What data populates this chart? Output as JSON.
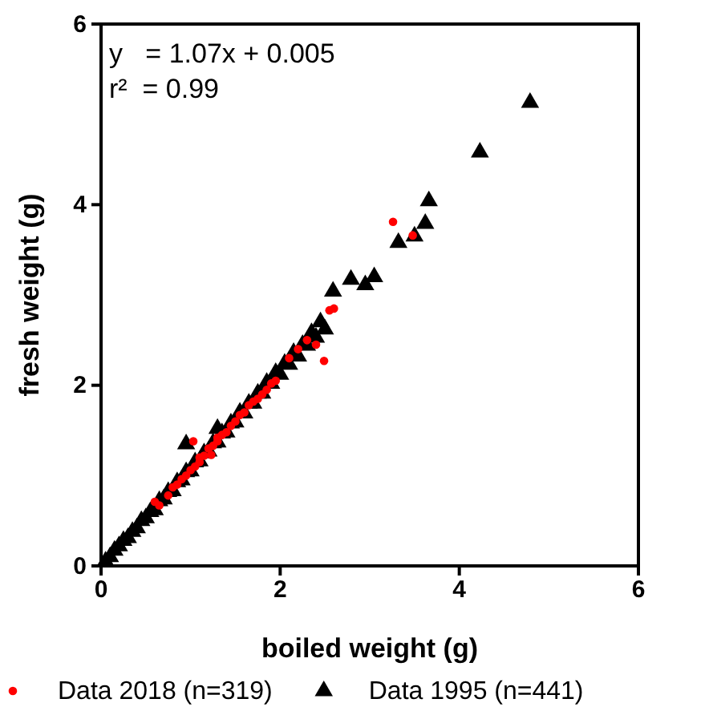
{
  "chart_data": {
    "type": "scatter",
    "xlabel": "boiled weight (g)",
    "ylabel": "fresh weight (g)",
    "xlim": [
      0,
      6
    ],
    "ylim": [
      0,
      6
    ],
    "xticks": [
      0,
      2,
      4,
      6
    ],
    "yticks": [
      0,
      2,
      4,
      6
    ],
    "grid": false,
    "legend": "bottom",
    "annotations": [
      "y   = 1.07x + 0.005",
      "r²  = 0.99"
    ],
    "series": [
      {
        "name": "Data 1995 (n=441)",
        "color": "#000000",
        "marker": "triangle",
        "x": [
          0.05,
          0.1,
          0.15,
          0.2,
          0.25,
          0.3,
          0.35,
          0.4,
          0.45,
          0.5,
          0.55,
          0.6,
          0.65,
          0.7,
          0.75,
          0.8,
          0.85,
          0.9,
          0.95,
          1.0,
          1.05,
          1.1,
          1.15,
          1.2,
          1.25,
          1.3,
          1.35,
          1.4,
          1.45,
          1.5,
          1.55,
          1.6,
          1.65,
          1.7,
          1.75,
          1.8,
          1.85,
          1.9,
          1.95,
          2.0,
          2.05,
          2.1,
          2.15,
          2.2,
          2.25,
          2.3,
          2.35,
          2.4,
          2.45,
          2.5,
          0.95,
          1.3,
          2.59,
          2.79,
          2.95,
          3.05,
          3.32,
          3.5,
          3.62,
          3.66,
          4.23,
          4.79
        ],
        "values": [
          0.05,
          0.1,
          0.17,
          0.22,
          0.28,
          0.31,
          0.38,
          0.42,
          0.5,
          0.53,
          0.6,
          0.62,
          0.72,
          0.74,
          0.82,
          0.83,
          0.93,
          0.95,
          1.04,
          1.05,
          1.15,
          1.16,
          1.25,
          1.27,
          1.36,
          1.37,
          1.47,
          1.48,
          1.58,
          1.59,
          1.7,
          1.69,
          1.8,
          1.8,
          1.91,
          1.91,
          2.03,
          2.02,
          2.14,
          2.12,
          2.24,
          2.23,
          2.36,
          2.32,
          2.45,
          2.44,
          2.58,
          2.53,
          2.7,
          2.62,
          1.35,
          1.52,
          3.04,
          3.17,
          3.11,
          3.2,
          3.58,
          3.65,
          3.79,
          4.04,
          4.58,
          5.13
        ]
      },
      {
        "name": "Data 2018 (n=319)",
        "color": "#ff0000",
        "marker": "circle",
        "x": [
          0.6,
          0.65,
          0.75,
          0.8,
          0.85,
          0.9,
          0.95,
          1.0,
          1.03,
          1.05,
          1.1,
          1.1,
          1.15,
          1.23,
          1.2,
          1.25,
          1.3,
          1.3,
          1.35,
          1.4,
          1.45,
          1.5,
          1.55,
          1.6,
          1.65,
          1.7,
          1.75,
          1.8,
          1.85,
          1.9,
          1.95,
          2.1,
          2.2,
          2.3,
          2.4,
          2.49,
          2.55,
          2.6,
          3.26,
          3.48
        ],
        "values": [
          0.71,
          0.67,
          0.78,
          0.87,
          0.9,
          0.96,
          1.0,
          1.06,
          1.38,
          1.1,
          1.15,
          1.2,
          1.22,
          1.23,
          1.3,
          1.33,
          1.38,
          1.42,
          1.45,
          1.48,
          1.55,
          1.6,
          1.67,
          1.7,
          1.78,
          1.82,
          1.85,
          1.9,
          1.95,
          2.02,
          2.05,
          2.3,
          2.4,
          2.5,
          2.45,
          2.27,
          2.83,
          2.85,
          3.81,
          3.66
        ]
      }
    ]
  }
}
